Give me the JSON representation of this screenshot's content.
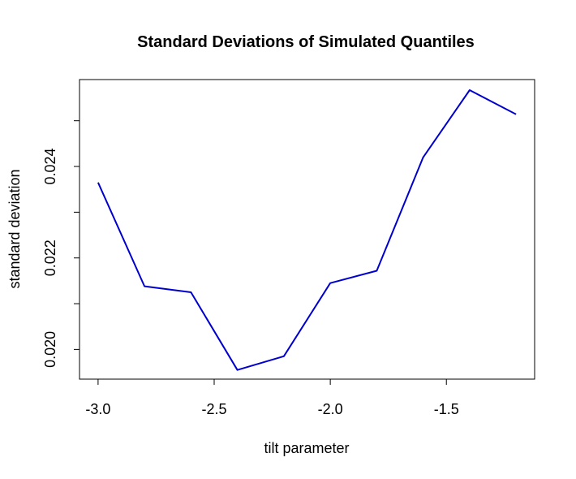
{
  "chart_data": {
    "type": "line",
    "title": "Standard Deviations of Simulated Quantiles",
    "xlabel": "tilt parameter",
    "ylabel": "standard deviation",
    "xlim": [
      -3.08,
      -1.12
    ],
    "ylim": [
      0.01935,
      0.0259
    ],
    "x_ticks": [
      -3.0,
      -2.5,
      -2.0,
      -1.5
    ],
    "x_tick_labels": [
      "-3.0",
      "-2.5",
      "-2.0",
      "-1.5"
    ],
    "y_ticks": [
      0.02,
      0.021,
      0.022,
      0.023,
      0.024,
      0.025
    ],
    "y_tick_labels": [
      "0.020",
      "",
      "0.022",
      "",
      "0.024",
      ""
    ],
    "grid": false,
    "series": [
      {
        "color": "#0000CD",
        "x": [
          -3.0,
          -2.8,
          -2.6,
          -2.4,
          -2.2,
          -2.0,
          -1.8,
          -1.6,
          -1.4,
          -1.2
        ],
        "y": [
          0.02365,
          0.02138,
          0.02125,
          0.01955,
          0.01985,
          0.02145,
          0.02172,
          0.0242,
          0.02567,
          0.02514
        ]
      }
    ]
  }
}
